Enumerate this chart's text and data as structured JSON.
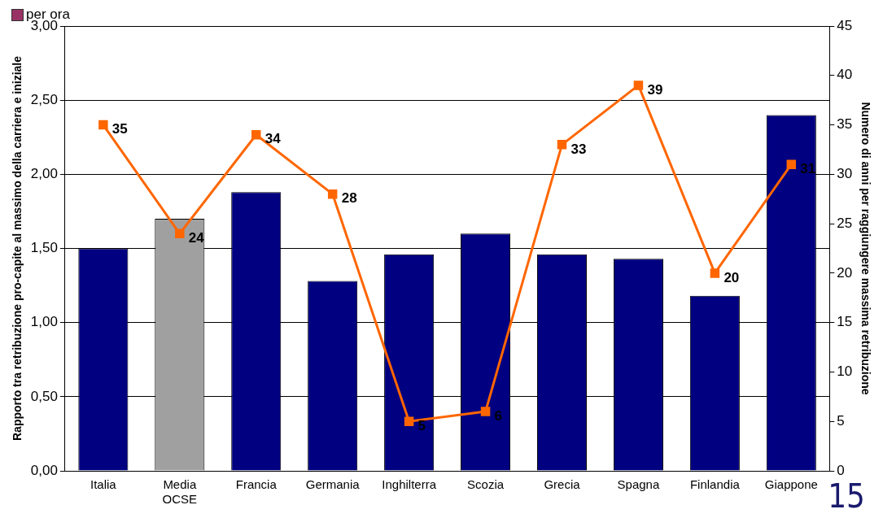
{
  "chart_data": {
    "type": "bar",
    "categories": [
      "Italia",
      "Media\nOCSE",
      "Francia",
      "Germania",
      "Inghilterra",
      "Scozia",
      "Grecia",
      "Spagna",
      "Finlandia",
      "Giappone"
    ],
    "series": [
      {
        "colors": [
          "#000080",
          "#a0a0a0",
          "#000080",
          "#000080",
          "#000080",
          "#000080",
          "#000080",
          "#000080",
          "#000080",
          "#000080"
        ],
        "values": [
          1.5,
          1.7,
          1.88,
          1.28,
          1.46,
          1.6,
          1.46,
          1.43,
          1.18,
          2.4
        ]
      },
      {
        "type": "line",
        "axis": "y2",
        "color": "#ff6600",
        "marker": "square",
        "values": [
          35,
          24,
          34,
          28,
          5,
          6,
          33,
          39,
          20,
          31
        ],
        "value_labels": [
          "35",
          "24",
          "34",
          "28",
          "5",
          "6",
          "33",
          "39",
          "20",
          "31"
        ]
      }
    ],
    "ylabel": "Rapporto tra retribuzione pro-capite al massimo della carriera e iniziale",
    "y2label": "Numero di anni per raggiungere massima retribuzione",
    "ylim": [
      0,
      3
    ],
    "yticks": [
      {
        "value": 0,
        "label": "0,00"
      },
      {
        "value": 0.5,
        "label": "0,50"
      },
      {
        "value": 1,
        "label": "1,00"
      },
      {
        "value": 1.5,
        "label": "1,50"
      },
      {
        "value": 2,
        "label": "2,00"
      },
      {
        "value": 2.5,
        "label": "2,50"
      },
      {
        "value": 3,
        "label": "3,00"
      }
    ],
    "y2lim": [
      0,
      45
    ],
    "y2ticks": [
      0,
      5,
      10,
      15,
      20,
      25,
      30,
      35,
      40,
      45
    ],
    "grid": "y",
    "annotations": [
      "per ora",
      "15"
    ]
  }
}
